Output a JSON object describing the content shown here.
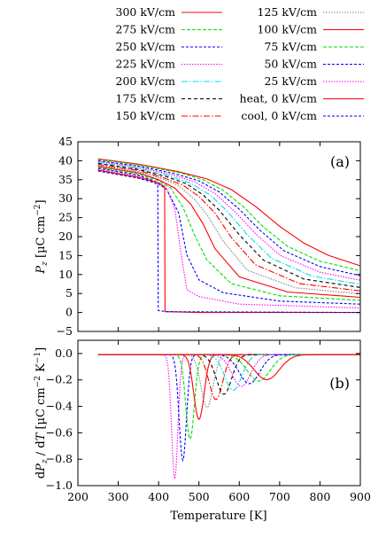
{
  "chart_data": [
    {
      "panel_label": "(a)",
      "type": "line",
      "ylabel": "P_z [µC cm^-2]",
      "ylabel_parts": {
        "sym": "P",
        "sub": "z",
        "unit": "[µC cm",
        "exp": "−2",
        "close": "]"
      },
      "xlim": [
        200,
        900
      ],
      "ylim": [
        -5,
        45
      ],
      "xticks": [
        "200",
        "300",
        "400",
        "500",
        "600",
        "700",
        "800",
        "900"
      ],
      "yticks": [
        "−5",
        "0",
        "5",
        "10",
        "15",
        "20",
        "25",
        "30",
        "35",
        "40",
        "45"
      ],
      "grid": false,
      "series": [
        {
          "name": "300 kV/cm",
          "color": "#ff0000",
          "dash": "solid",
          "x": [
            250,
            350,
            450,
            520,
            580,
            640,
            700,
            760,
            820,
            900
          ],
          "y": [
            40.5,
            39.1,
            37.1,
            35.2,
            32.4,
            28.0,
            22.7,
            18.3,
            15.1,
            12.3
          ]
        },
        {
          "name": "275 kV/cm",
          "color": "#00e000",
          "dash": "4,2",
          "x": [
            250,
            350,
            450,
            510,
            560,
            610,
            660,
            720,
            800,
            900
          ],
          "y": [
            40.3,
            38.9,
            36.9,
            35.0,
            32.2,
            27.9,
            22.5,
            17.4,
            13.5,
            11.0
          ]
        },
        {
          "name": "250 kV/cm",
          "color": "#0000ff",
          "dash": "3,2",
          "x": [
            250,
            350,
            440,
            500,
            550,
            600,
            650,
            710,
            800,
            900
          ],
          "y": [
            40.0,
            38.6,
            36.6,
            34.7,
            31.8,
            27.2,
            21.8,
            16.3,
            12.1,
            9.7
          ]
        },
        {
          "name": "225 kV/cm",
          "color": "#ff00ff",
          "dash": "1.5,1.5",
          "x": [
            250,
            350,
            430,
            490,
            540,
            590,
            640,
            700,
            800,
            900
          ],
          "y": [
            39.8,
            38.3,
            36.4,
            34.4,
            31.3,
            26.5,
            20.8,
            15.1,
            10.6,
            8.5
          ]
        },
        {
          "name": "200 kV/cm",
          "color": "#00e0e0",
          "dash": "7,2,1.5,2",
          "x": [
            250,
            350,
            420,
            480,
            530,
            570,
            620,
            680,
            780,
            900
          ],
          "y": [
            39.5,
            38.0,
            36.2,
            34.1,
            30.8,
            26.7,
            20.5,
            14.3,
            9.6,
            7.4
          ]
        },
        {
          "name": "175 kV/cm",
          "color": "#000000",
          "dash": "4,3",
          "x": [
            250,
            350,
            420,
            470,
            510,
            550,
            600,
            660,
            760,
            900
          ],
          "y": [
            39.3,
            37.7,
            35.8,
            33.9,
            31.0,
            27.0,
            20.5,
            13.8,
            8.8,
            6.6
          ]
        },
        {
          "name": "150 kV/cm",
          "color": "#ff0000",
          "dash": "7,2,1.5,2",
          "x": [
            250,
            350,
            410,
            460,
            500,
            540,
            580,
            640,
            750,
            900
          ],
          "y": [
            39.0,
            37.4,
            35.6,
            33.6,
            30.6,
            26.2,
            19.8,
            12.6,
            7.6,
            5.7
          ]
        },
        {
          "name": "125 kV/cm",
          "color": "#808080",
          "dash": "1.5,1.5",
          "x": [
            250,
            350,
            410,
            450,
            490,
            520,
            560,
            620,
            740,
            900
          ],
          "y": [
            38.8,
            37.1,
            35.2,
            33.4,
            29.7,
            25.8,
            18.8,
            11.1,
            6.5,
            4.9
          ]
        },
        {
          "name": "100 kV/cm",
          "color": "#ff0000",
          "dash": "solid",
          "x": [
            250,
            350,
            400,
            440,
            480,
            510,
            540,
            600,
            720,
            900
          ],
          "y": [
            38.5,
            36.8,
            35.0,
            32.8,
            28.5,
            23.4,
            16.8,
            9.4,
            5.4,
            4.0
          ]
        },
        {
          "name": "75 kV/cm",
          "color": "#00e000",
          "dash": "4,2",
          "x": [
            250,
            350,
            400,
            430,
            460,
            490,
            520,
            580,
            700,
            900
          ],
          "y": [
            38.2,
            36.5,
            34.7,
            32.8,
            27.8,
            20.2,
            13.8,
            7.6,
            4.4,
            3.2
          ]
        },
        {
          "name": "50 kV/cm",
          "color": "#0000ff",
          "dash": "3,2",
          "x": [
            250,
            350,
            390,
            420,
            450,
            470,
            500,
            560,
            700,
            900
          ],
          "y": [
            38.0,
            36.2,
            34.6,
            32.5,
            26.2,
            15.2,
            8.6,
            5.2,
            3.0,
            2.2
          ]
        },
        {
          "name": "25 kV/cm",
          "color": "#ff00ff",
          "dash": "1.5,1.5",
          "x": [
            250,
            350,
            390,
            420,
            440,
            455,
            470,
            500,
            600,
            900
          ],
          "y": [
            37.7,
            35.9,
            34.4,
            32.4,
            27.5,
            16.0,
            6.0,
            4.2,
            2.2,
            1.2
          ]
        },
        {
          "name": "heat, 0 kV/cm",
          "color": "#ff0000",
          "dash": "solid",
          "x": [
            250,
            350,
            400,
            415,
            416,
            416.5,
            500,
            900
          ],
          "y": [
            37.5,
            35.6,
            34.2,
            33.2,
            0.8,
            0.2,
            0.0,
            0.0
          ]
        },
        {
          "name": "cool, 0 kV/cm",
          "color": "#0000ff",
          "dash": "3,2",
          "x": [
            250,
            350,
            390,
            398,
            399,
            399.5,
            420,
            900
          ],
          "y": [
            37.3,
            35.4,
            34.2,
            33.6,
            3.0,
            0.5,
            0.2,
            0.0
          ]
        }
      ]
    },
    {
      "panel_label": "(b)",
      "type": "line",
      "xlabel": "Temperature [K]",
      "ylabel": "dP_z / dT [µC cm^-2 K^-1]",
      "ylabel_parts": {
        "pre": "d",
        "sym": "P",
        "sub": "z",
        "mid": " / d",
        "sym2": "T",
        "unit": " [µC cm",
        "exp1": "−2",
        "unit2": " K",
        "exp2": "−1",
        "close": "]"
      },
      "xlim": [
        200,
        900
      ],
      "ylim": [
        -1.0,
        0.1
      ],
      "xticks": [
        "200",
        "300",
        "400",
        "500",
        "600",
        "700",
        "800",
        "900"
      ],
      "yticks": [
        "−1.0",
        "−0.8",
        "−0.6",
        "−0.4",
        "−0.2",
        "0.0"
      ],
      "grid": false,
      "series": [
        {
          "name": "25 kV/cm",
          "color": "#ff00ff",
          "dash": "1.5,1.5",
          "center": 440,
          "depth": -0.94,
          "width": 11
        },
        {
          "name": "50 kV/cm",
          "color": "#0000ff",
          "dash": "3,2",
          "center": 460,
          "depth": -0.8,
          "width": 13
        },
        {
          "name": "75 kV/cm",
          "color": "#00e000",
          "dash": "4,2",
          "center": 478,
          "depth": -0.64,
          "width": 15
        },
        {
          "name": "100 kV/cm",
          "color": "#ff0000",
          "dash": "solid",
          "center": 500,
          "depth": -0.49,
          "width": 18
        },
        {
          "name": "125 kV/cm",
          "color": "#808080",
          "dash": "1.5,1.5",
          "center": 520,
          "depth": -0.4,
          "width": 21
        },
        {
          "name": "150 kV/cm",
          "color": "#ff0000",
          "dash": "7,2,1.5,2",
          "center": 542,
          "depth": -0.34,
          "width": 24
        },
        {
          "name": "175 kV/cm",
          "color": "#000000",
          "dash": "4,3",
          "center": 562,
          "depth": -0.3,
          "width": 27
        },
        {
          "name": "200 kV/cm",
          "color": "#00e0e0",
          "dash": "7,2,1.5,2",
          "center": 585,
          "depth": -0.27,
          "width": 30
        },
        {
          "name": "225 kV/cm",
          "color": "#ff00ff",
          "dash": "1.5,1.5",
          "center": 605,
          "depth": -0.24,
          "width": 33
        },
        {
          "name": "250 kV/cm",
          "color": "#0000ff",
          "dash": "3,2",
          "center": 625,
          "depth": -0.22,
          "width": 36
        },
        {
          "name": "275 kV/cm",
          "color": "#00e000",
          "dash": "4,2",
          "center": 648,
          "depth": -0.2,
          "width": 40
        },
        {
          "name": "300 kV/cm",
          "color": "#ff0000",
          "dash": "solid",
          "center": 668,
          "depth": -0.19,
          "width": 44
        }
      ]
    }
  ]
}
